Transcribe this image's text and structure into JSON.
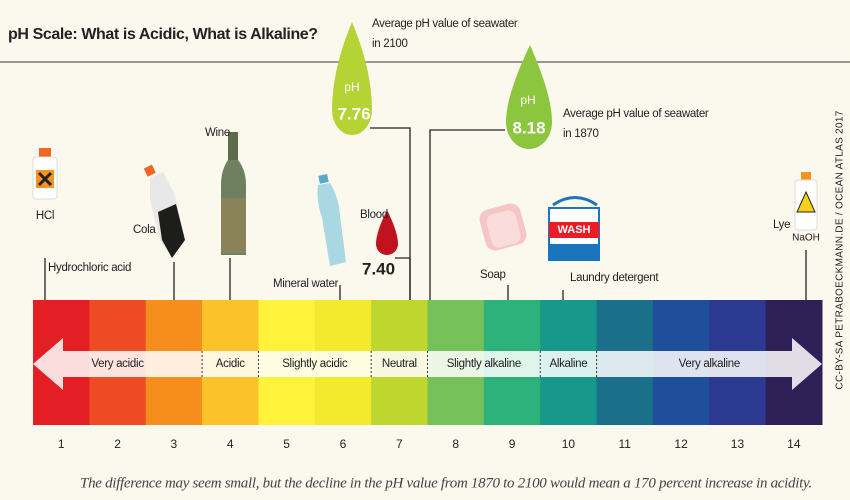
{
  "header": {
    "title": "pH Scale: What is Acidic, What is Alkaline?"
  },
  "items": [
    {
      "name": "hcl",
      "label": "HCl",
      "caption": "Hydrochloric acid"
    },
    {
      "name": "cola",
      "caption": "Cola"
    },
    {
      "name": "wine",
      "caption": "Wine"
    },
    {
      "name": "mineral-water",
      "caption": "Mineral water"
    },
    {
      "name": "blood",
      "caption": "Blood",
      "value": "7.40"
    },
    {
      "name": "soap",
      "caption": "Soap"
    },
    {
      "name": "laundry-detergent",
      "caption": "Laundry detergent",
      "label": "WASH"
    },
    {
      "name": "lye",
      "caption": "Lye",
      "label": "NaOH"
    }
  ],
  "markers": [
    {
      "unit": "pH",
      "value": "7.76",
      "note": [
        "Average pH value of seawater",
        "in 2100"
      ]
    },
    {
      "unit": "pH",
      "value": "8.18",
      "note": [
        "Average pH value of seawater",
        "in 1870"
      ]
    }
  ],
  "scale": {
    "numbers": [
      "1",
      "2",
      "3",
      "4",
      "5",
      "6",
      "7",
      "8",
      "9",
      "10",
      "11",
      "12",
      "13",
      "14"
    ],
    "zones": [
      "Very acidic",
      "Acidic",
      "Slightly acidic",
      "Neutral",
      "Slightly alkaline",
      "Alkaline",
      "Very alkaline"
    ]
  },
  "footer": "The difference may seem small, but the decline in the pH value from 1870 to 2100 would mean a 170 percent increase in acidity.",
  "credit": "CC-BY-SA PETRABOECKMANN.DE / OCEAN ATLAS 2017"
}
